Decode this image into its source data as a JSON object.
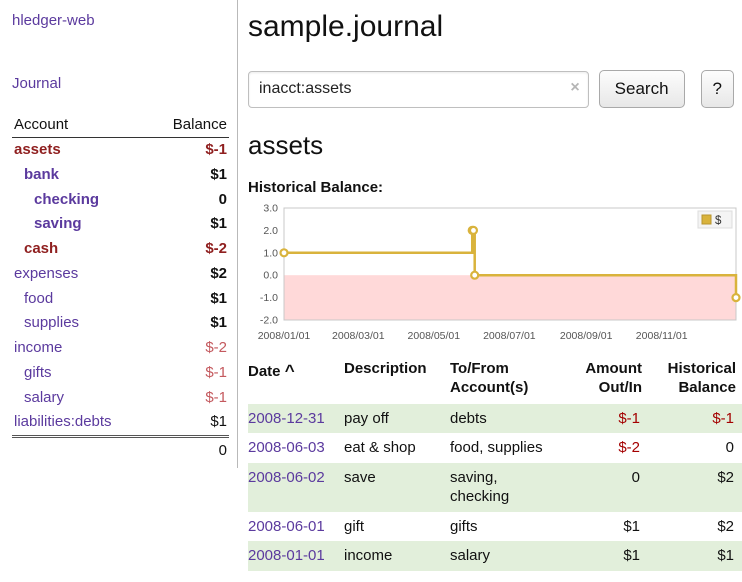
{
  "colors": {
    "link_purple": "#5b3a9e",
    "negative_dark": "#8f1f1f",
    "negative_light": "#c4595e",
    "negative": "#a40000",
    "row_green": "#e2efdb",
    "chart_line": "#d9b33c",
    "chart_negative_fill": "#ffd9d9"
  },
  "sidebar": {
    "app_title": "hledger-web",
    "journal_link": "Journal",
    "accounts": {
      "header_account": "Account",
      "header_balance": "Balance",
      "rows": [
        {
          "name": "assets",
          "depth": 0,
          "balance": "$-1",
          "name_class": "acct-bold acct-neg",
          "bal_class": "bal-negdark"
        },
        {
          "name": "bank",
          "depth": 1,
          "balance": "$1",
          "name_class": "acct-bold",
          "bal_class": "bal-bold"
        },
        {
          "name": "checking",
          "depth": 2,
          "balance": "0",
          "name_class": "acct-bold",
          "bal_class": "bal-bold"
        },
        {
          "name": "saving",
          "depth": 2,
          "balance": "$1",
          "name_class": "acct-bold",
          "bal_class": "bal-bold"
        },
        {
          "name": "cash",
          "depth": 1,
          "balance": "$-2",
          "name_class": "acct-bold acct-neg",
          "bal_class": "bal-negdark"
        },
        {
          "name": "expenses",
          "depth": 0,
          "balance": "$2",
          "name_class": "",
          "bal_class": "bal-bold"
        },
        {
          "name": "food",
          "depth": 1,
          "balance": "$1",
          "name_class": "",
          "bal_class": "bal-bold"
        },
        {
          "name": "supplies",
          "depth": 1,
          "balance": "$1",
          "name_class": "",
          "bal_class": "bal-bold"
        },
        {
          "name": "income",
          "depth": 0,
          "balance": "$-2",
          "name_class": "",
          "bal_class": "bal-neglight"
        },
        {
          "name": "gifts",
          "depth": 1,
          "balance": "$-1",
          "name_class": "",
          "bal_class": "bal-neglight"
        },
        {
          "name": "salary",
          "depth": 1,
          "balance": "$-1",
          "name_class": "",
          "bal_class": "bal-neglight"
        },
        {
          "name": "liabilities:debts",
          "depth": 0,
          "balance": "$1",
          "name_class": "",
          "bal_class": ""
        }
      ],
      "total": "0"
    }
  },
  "main": {
    "title": "sample.journal",
    "search": {
      "value": "inacct:assets",
      "clear_icon": "×",
      "button_label": "Search",
      "help_label": "?"
    },
    "account_heading": "assets",
    "chart_label": "Historical Balance:",
    "chart_data": {
      "type": "line",
      "title": "Historical Balance",
      "legend_position": "top-right",
      "ylim": [
        -2,
        3
      ],
      "yticks": [
        "3.0",
        "2.0",
        "1.0",
        "0.0",
        "-1.0",
        "-2.0"
      ],
      "xticks": [
        "2008/01/01",
        "2008/03/01",
        "2008/05/01",
        "2008/07/01",
        "2008/09/01",
        "2008/11/01"
      ],
      "x_range": [
        "2008-01-01",
        "2008-12-31"
      ],
      "series": [
        {
          "name": "$",
          "points": [
            [
              "2008-01-01",
              1
            ],
            [
              "2008-06-01",
              2
            ],
            [
              "2008-06-02",
              2
            ],
            [
              "2008-06-03",
              0
            ],
            [
              "2008-12-31",
              -1
            ]
          ]
        }
      ],
      "line_color": "#d9b33c",
      "negative_fill": "#ffd9d9",
      "grid": false
    },
    "register": {
      "headers": {
        "date": "Date",
        "sort_icon": "^",
        "description": "Description",
        "accounts": "To/From Account(s)",
        "amount": "Amount Out/In",
        "balance": "Historical Balance"
      },
      "rows": [
        {
          "date": "2008-12-31",
          "description": "pay off",
          "accounts": "debts",
          "amount": "$-1",
          "balance": "$-1"
        },
        {
          "date": "2008-06-03",
          "description": "eat & shop",
          "accounts": "food, supplies",
          "amount": "$-2",
          "balance": "0"
        },
        {
          "date": "2008-06-02",
          "description": "save",
          "accounts": "saving, checking",
          "amount": "0",
          "balance": "$2"
        },
        {
          "date": "2008-06-01",
          "description": "gift",
          "accounts": "gifts",
          "amount": "$1",
          "balance": "$2"
        },
        {
          "date": "2008-01-01",
          "description": "income",
          "accounts": "salary",
          "amount": "$1",
          "balance": "$1"
        }
      ]
    }
  }
}
